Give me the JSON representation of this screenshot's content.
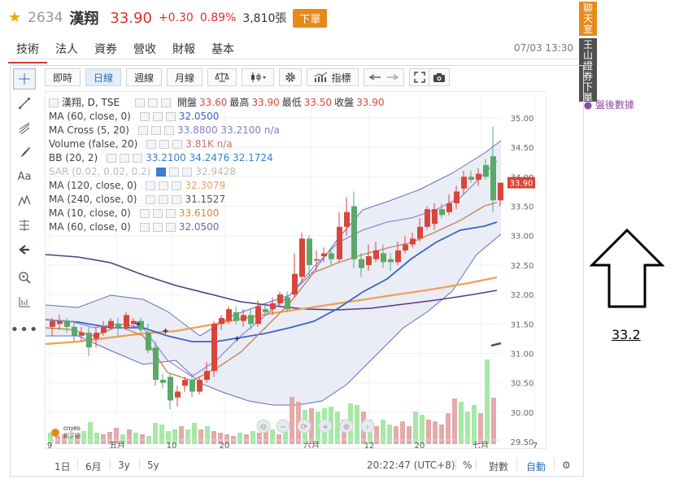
{
  "quote": {
    "code": "2634",
    "name": "漢翔",
    "price": "33.90",
    "change": "+0.30",
    "change_pct": "0.89%",
    "volume": "3,810張",
    "order_label": "下單",
    "star": "★"
  },
  "tabs": [
    {
      "label": "技術",
      "active": true
    },
    {
      "label": "法人"
    },
    {
      "label": "資券"
    },
    {
      "label": "營收"
    },
    {
      "label": "財報"
    },
    {
      "label": "基本"
    }
  ],
  "datetime": "07/03 13:30",
  "side_buttons": {
    "chat": "聊天室",
    "broker": "王山證券下單"
  },
  "toolbar": {
    "intraday": "即時",
    "daily": "日線",
    "weekly": "週線",
    "monthly": "月線",
    "indicators": "指標"
  },
  "legend": {
    "main": "漢翔, D, TSE",
    "open_label": "開盤",
    "open": "33.60",
    "high_label": "最高",
    "high": "33.90",
    "low_label": "最低",
    "low": "33.50",
    "close_label": "收盤",
    "close": "33.90",
    "after_hours": "盤後數據",
    "rows": [
      {
        "name": "MA (60, close, 0)",
        "values": "32.0500"
      },
      {
        "name": "MA Cross (5, 20)",
        "values": "33.8800  33.2100  n/a"
      },
      {
        "name": "Volume (false, 20)",
        "values": "3.81K  n/a"
      },
      {
        "name": "BB (20, 2)",
        "values": "33.2100  34.2476  32.1724"
      },
      {
        "name": "SAR (0.02, 0.02, 0.2)",
        "values": "32.9428"
      },
      {
        "name": "MA (120, close, 0)",
        "values": "32.3079"
      },
      {
        "name": "MA (240, close, 0)",
        "values": "31.1527"
      },
      {
        "name": "MA (10, close, 0)",
        "values": "33.6100"
      },
      {
        "name": "MA (60, close, 0)",
        "values": "32.0500"
      }
    ]
  },
  "y_axis": {
    "ticks": [
      "35.00",
      "34.50",
      "34.00",
      "33.50",
      "33.00",
      "32.50",
      "32.00",
      "31.50",
      "31.00",
      "30.50",
      "30.00",
      "29.50"
    ],
    "price_badge": "33.90"
  },
  "x_axis": {
    "ticks": [
      "9",
      "五月",
      "10",
      "20",
      "六月",
      "12",
      "20",
      "七月",
      "7"
    ]
  },
  "bottom_bar": {
    "ranges": [
      "1日",
      "6月",
      "3y",
      "5y"
    ],
    "time": "20:22:47 (UTC+8)",
    "pct": "%",
    "log": "對數",
    "auto": "自動"
  },
  "logo": {
    "line1": "cnyes",
    "line2": "鉅亨網"
  },
  "annotation": {
    "value": "33.2"
  },
  "colors": {
    "up": "#d9453b",
    "down": "#5aa86b",
    "ma10": "#c7855b",
    "ma20": "#8f8fd0",
    "ma60": "#3a64c8",
    "ma120": "#f0a050",
    "ma240": "#5b3a80",
    "bb_fill": "#e8eaf5",
    "accent": "#e8891a"
  }
}
